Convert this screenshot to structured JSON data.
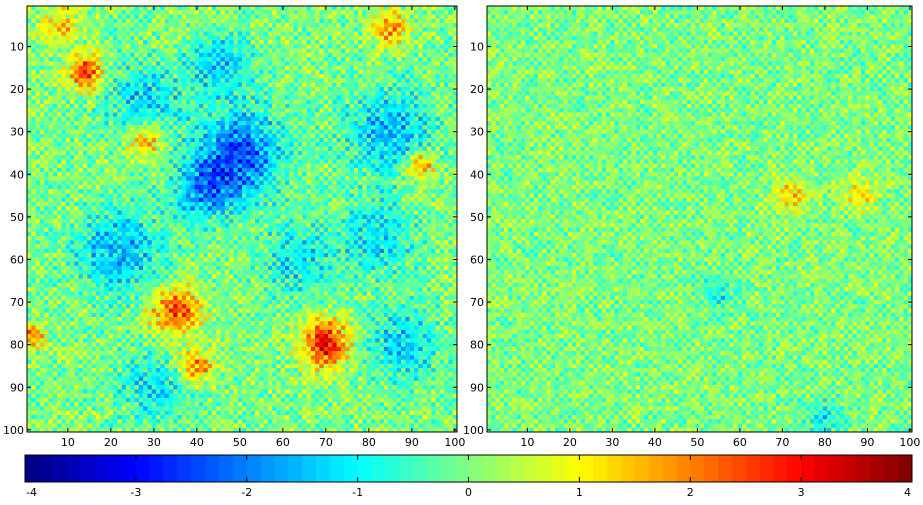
{
  "chart_data": [
    {
      "type": "heatmap",
      "title": "",
      "xlabel": "",
      "ylabel": "",
      "xlim": [
        0.5,
        100.5
      ],
      "ylim": [
        0.5,
        100.5
      ],
      "y_reversed": true,
      "grid": false,
      "xticks": [
        10,
        20,
        30,
        40,
        50,
        60,
        70,
        80,
        90,
        100
      ],
      "yticks": [
        10,
        20,
        30,
        40,
        50,
        60,
        70,
        80,
        90,
        100
      ],
      "rows": 100,
      "cols": 100,
      "noise_amplitude": 1.0,
      "blobs": [
        {
          "x": 50,
          "y": 35,
          "sigma": 7,
          "value": -2.4
        },
        {
          "x": 42,
          "y": 44,
          "sigma": 5,
          "value": -1.8
        },
        {
          "x": 28,
          "y": 23,
          "sigma": 6,
          "value": -1.4
        },
        {
          "x": 22,
          "y": 58,
          "sigma": 7,
          "value": -1.6
        },
        {
          "x": 45,
          "y": 14,
          "sigma": 5,
          "value": -1.4
        },
        {
          "x": 85,
          "y": 30,
          "sigma": 7,
          "value": -1.6
        },
        {
          "x": 82,
          "y": 55,
          "sigma": 6,
          "value": -1.2
        },
        {
          "x": 88,
          "y": 80,
          "sigma": 6,
          "value": -1.3
        },
        {
          "x": 63,
          "y": 60,
          "sigma": 6,
          "value": -1.1
        },
        {
          "x": 30,
          "y": 90,
          "sigma": 6,
          "value": -1.1
        },
        {
          "x": 14,
          "y": 16,
          "sigma": 3,
          "value": 2.6
        },
        {
          "x": 70,
          "y": 80,
          "sigma": 4,
          "value": 3.0
        },
        {
          "x": 35,
          "y": 72,
          "sigma": 4,
          "value": 2.5
        },
        {
          "x": 40,
          "y": 85,
          "sigma": 3,
          "value": 2.0
        },
        {
          "x": 28,
          "y": 32,
          "sigma": 3,
          "value": 1.8
        },
        {
          "x": 92,
          "y": 38,
          "sigma": 2.5,
          "value": 2.0
        },
        {
          "x": 85,
          "y": 6,
          "sigma": 3,
          "value": 1.8
        },
        {
          "x": 8,
          "y": 5,
          "sigma": 3,
          "value": 1.5
        },
        {
          "x": 2,
          "y": 78,
          "sigma": 2,
          "value": 2.0
        }
      ]
    },
    {
      "type": "heatmap",
      "title": "",
      "xlabel": "",
      "ylabel": "",
      "xlim": [
        0.5,
        100.5
      ],
      "ylim": [
        0.5,
        100.5
      ],
      "y_reversed": true,
      "grid": false,
      "xticks": [
        10,
        20,
        30,
        40,
        50,
        60,
        70,
        80,
        90,
        100
      ],
      "yticks": [
        10,
        20,
        30,
        40,
        50,
        60,
        70,
        80,
        90,
        100
      ],
      "rows": 100,
      "cols": 100,
      "noise_amplitude": 0.9,
      "blobs": [
        {
          "x": 72,
          "y": 45,
          "sigma": 3,
          "value": 1.3
        },
        {
          "x": 88,
          "y": 45,
          "sigma": 3,
          "value": 1.1
        },
        {
          "x": 80,
          "y": 97,
          "sigma": 3,
          "value": -1.0
        },
        {
          "x": 55,
          "y": 68,
          "sigma": 3,
          "value": -0.9
        }
      ]
    }
  ],
  "colorbar": {
    "colormap": "jet",
    "range": [
      -4,
      4
    ],
    "ticks": [
      -4,
      -3,
      -2,
      -1,
      0,
      1,
      2,
      3,
      4
    ],
    "tick_labels": [
      "-4",
      "-3",
      "-2",
      "-1",
      "0",
      "1",
      "2",
      "3",
      "4"
    ]
  }
}
